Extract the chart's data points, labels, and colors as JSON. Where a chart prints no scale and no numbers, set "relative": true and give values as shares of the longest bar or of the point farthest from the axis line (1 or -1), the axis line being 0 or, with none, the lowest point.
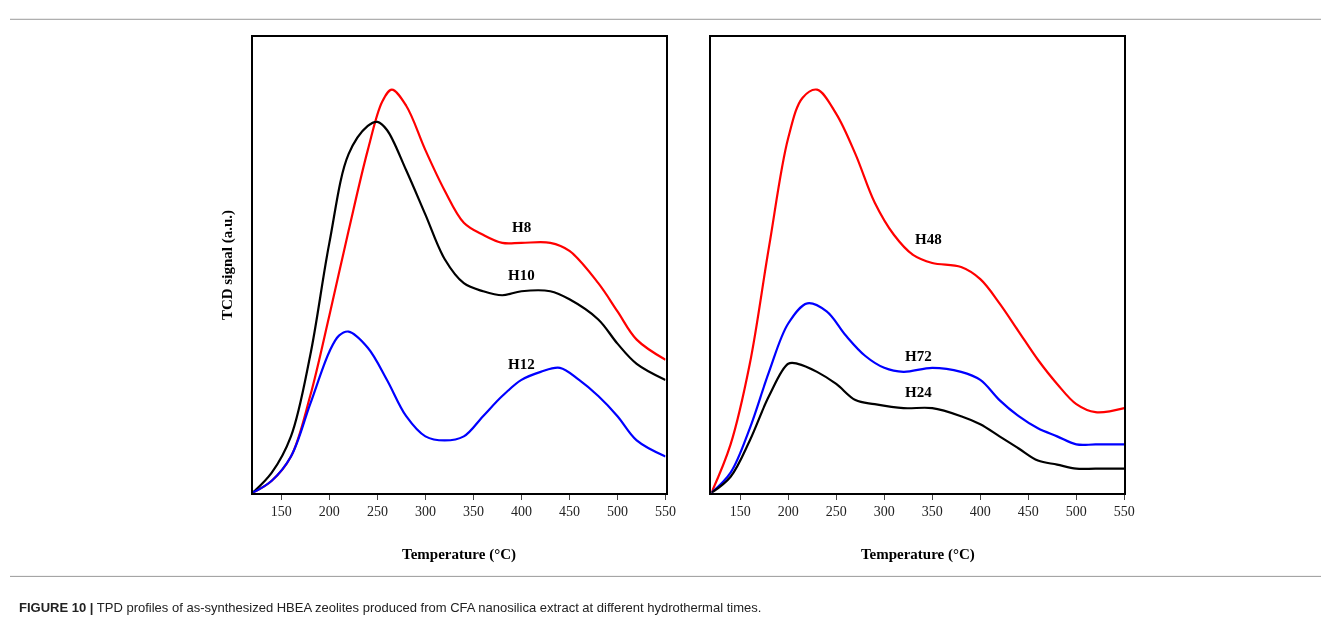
{
  "chart_data": [
    {
      "type": "line",
      "relative": true,
      "xlabel": "Temperature (°C)",
      "ylabel": "TCD signal (a.u.)",
      "xlim": [
        120,
        550
      ],
      "xticks": [
        150,
        200,
        250,
        300,
        350,
        400,
        450,
        500,
        550
      ],
      "legend": false,
      "marker": "none",
      "line_style": "solid",
      "annotations": [
        "FIGURE 10 | TPD profiles of as-synthesized HBEA zeolites produced from CFA nanosilica extract at different hydrothermal times."
      ],
      "series": [
        {
          "name": "H8",
          "color": "#ff0000",
          "x": [
            120,
            140,
            160,
            180,
            200,
            220,
            240,
            255,
            265,
            280,
            300,
            320,
            340,
            360,
            380,
            400,
            430,
            450,
            480,
            500,
            520,
            550
          ],
          "values": [
            0,
            0.03,
            0.09,
            0.24,
            0.44,
            0.65,
            0.85,
            0.97,
            1.0,
            0.96,
            0.85,
            0.75,
            0.67,
            0.64,
            0.62,
            0.62,
            0.62,
            0.6,
            0.52,
            0.45,
            0.38,
            0.33
          ]
        },
        {
          "name": "H10",
          "color": "#000000",
          "x": [
            120,
            140,
            160,
            180,
            200,
            220,
            240,
            250,
            260,
            280,
            300,
            320,
            340,
            360,
            380,
            400,
            430,
            450,
            480,
            500,
            520,
            550
          ],
          "values": [
            0,
            0.05,
            0.14,
            0.34,
            0.62,
            0.84,
            0.91,
            0.92,
            0.9,
            0.8,
            0.69,
            0.58,
            0.52,
            0.5,
            0.49,
            0.5,
            0.5,
            0.48,
            0.43,
            0.37,
            0.32,
            0.28
          ]
        },
        {
          "name": "H12",
          "color": "#0000ff",
          "x": [
            120,
            140,
            160,
            180,
            200,
            210,
            220,
            240,
            260,
            280,
            300,
            320,
            340,
            360,
            380,
            400,
            420,
            440,
            460,
            480,
            500,
            520,
            550
          ],
          "values": [
            0,
            0.03,
            0.09,
            0.22,
            0.35,
            0.39,
            0.4,
            0.36,
            0.28,
            0.19,
            0.14,
            0.13,
            0.14,
            0.19,
            0.24,
            0.28,
            0.3,
            0.31,
            0.28,
            0.24,
            0.19,
            0.13,
            0.09
          ]
        }
      ]
    },
    {
      "type": "line",
      "relative": true,
      "xlabel": "Temperature (°C)",
      "xlim": [
        120,
        550
      ],
      "xticks": [
        150,
        200,
        250,
        300,
        350,
        400,
        450,
        500,
        550
      ],
      "legend": false,
      "marker": "none",
      "line_style": "solid",
      "series": [
        {
          "name": "H48",
          "color": "#ff0000",
          "x": [
            120,
            140,
            160,
            180,
            200,
            215,
            230,
            250,
            270,
            290,
            310,
            330,
            350,
            380,
            400,
            420,
            440,
            460,
            480,
            500,
            520,
            550
          ],
          "values": [
            0,
            0.12,
            0.32,
            0.61,
            0.88,
            0.98,
            1.0,
            0.94,
            0.84,
            0.72,
            0.64,
            0.59,
            0.57,
            0.56,
            0.53,
            0.47,
            0.4,
            0.33,
            0.27,
            0.22,
            0.2,
            0.21
          ]
        },
        {
          "name": "H72",
          "color": "#0000ff",
          "x": [
            120,
            140,
            160,
            180,
            200,
            220,
            240,
            260,
            280,
            300,
            320,
            350,
            380,
            400,
            420,
            440,
            460,
            480,
            500,
            520,
            550
          ],
          "values": [
            0,
            0.05,
            0.16,
            0.3,
            0.42,
            0.47,
            0.45,
            0.39,
            0.34,
            0.31,
            0.3,
            0.31,
            0.3,
            0.28,
            0.23,
            0.19,
            0.16,
            0.14,
            0.12,
            0.12,
            0.12
          ]
        },
        {
          "name": "H24",
          "color": "#000000",
          "x": [
            120,
            140,
            160,
            180,
            200,
            210,
            230,
            250,
            270,
            290,
            320,
            350,
            380,
            400,
            420,
            440,
            460,
            480,
            500,
            520,
            550
          ],
          "values": [
            0,
            0.04,
            0.13,
            0.24,
            0.32,
            0.32,
            0.3,
            0.27,
            0.23,
            0.22,
            0.21,
            0.21,
            0.19,
            0.17,
            0.14,
            0.11,
            0.08,
            0.07,
            0.06,
            0.06,
            0.06
          ]
        }
      ]
    }
  ]
}
